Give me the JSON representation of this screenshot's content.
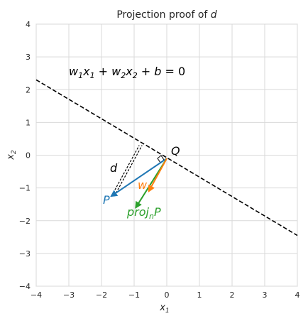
{
  "chart_data": {
    "type": "line",
    "title": "Projection proof of d",
    "xlabel": "x1",
    "ylabel": "x2",
    "xlim": [
      -4,
      4
    ],
    "ylim": [
      -4,
      4
    ],
    "xticks": [
      -4,
      -3,
      -2,
      -1,
      0,
      1,
      2,
      3,
      4
    ],
    "yticks": [
      -4,
      -3,
      -2,
      -1,
      0,
      1,
      2,
      3,
      4
    ],
    "grid": true,
    "line": {
      "equation": "w1x1 + w2x2 + b = 0",
      "points": [
        [
          -4,
          2.3
        ],
        [
          4,
          -2.45
        ]
      ],
      "style": "dashed",
      "color": "#000000"
    },
    "distance_segment": {
      "label": "d",
      "from": [
        -1.65,
        -1.25
      ],
      "to": [
        -0.8,
        0.3
      ],
      "style": "dashed",
      "color": "#000000"
    },
    "vectors": [
      {
        "name": "P",
        "from": [
          0,
          -0.1
        ],
        "to": [
          -1.7,
          -1.25
        ],
        "color": "#1f77b4"
      },
      {
        "name": "w",
        "from": [
          0,
          -0.1
        ],
        "to": [
          -0.55,
          -1.1
        ],
        "color": "#ff7f0e"
      },
      {
        "name": "projnP",
        "from": [
          0,
          -0.1
        ],
        "to": [
          -0.95,
          -1.6
        ],
        "color": "#2ca02c"
      }
    ],
    "points": [
      {
        "name": "Q",
        "x": 0.1,
        "y": 0.1
      }
    ]
  }
}
